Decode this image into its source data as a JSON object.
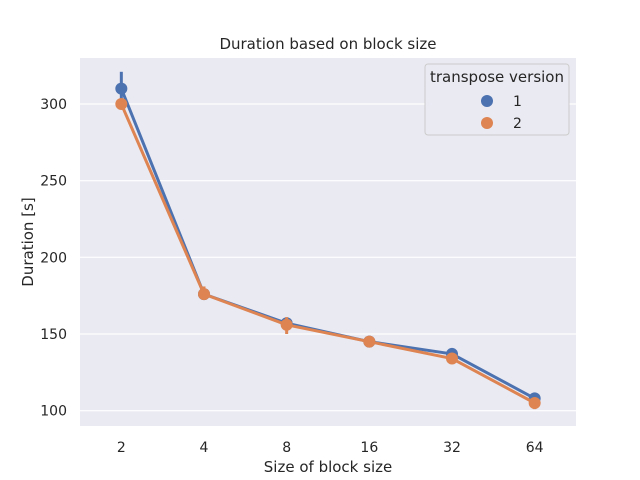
{
  "chart_data": {
    "type": "line",
    "title": "Duration based on block size",
    "xlabel": "Size of block size",
    "ylabel": "Duration [s]",
    "categories": [
      "2",
      "4",
      "8",
      "16",
      "32",
      "64"
    ],
    "yticks": [
      "100",
      "150",
      "200",
      "250",
      "300"
    ],
    "ylim": [
      90,
      330
    ],
    "grid": true,
    "legend": {
      "title": "transpose version",
      "placement": "top-right"
    },
    "series": [
      {
        "name": "1",
        "color": "#4c72b0",
        "values": [
          310,
          176,
          157,
          145,
          137,
          108
        ],
        "ci_low": [
          302,
          174,
          155,
          144,
          135,
          105
        ],
        "ci_high": [
          321,
          178,
          160,
          146,
          138,
          110
        ]
      },
      {
        "name": "2",
        "color": "#dd8452",
        "values": [
          300,
          176,
          156,
          145,
          134,
          105
        ],
        "ci_low": [
          298,
          173,
          150,
          143,
          132,
          101
        ],
        "ci_high": [
          303,
          181,
          161,
          147,
          136,
          108
        ]
      }
    ]
  }
}
